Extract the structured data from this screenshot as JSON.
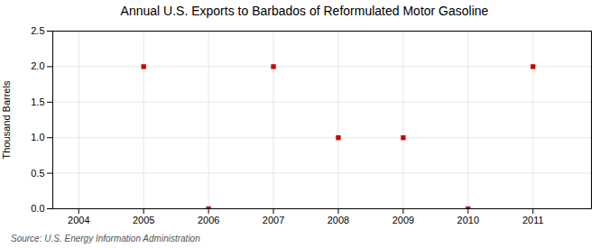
{
  "chart_data": {
    "type": "scatter",
    "title": "Annual U.S. Exports to Barbados of Reformulated Motor Gasoline",
    "ylabel": "Thousand Barrels",
    "source": "Source: U.S. Energy Information Administration",
    "x": [
      2005,
      2006,
      2007,
      2008,
      2009,
      2010,
      2011
    ],
    "values": [
      2,
      0,
      2,
      1,
      1,
      0,
      2
    ],
    "color": "#CC0000",
    "marker": "square",
    "xlim": [
      2003.6,
      2011.9
    ],
    "xticks": [
      2004,
      2005,
      2006,
      2007,
      2008,
      2009,
      2010,
      2011
    ],
    "ylim": [
      0,
      2.5
    ],
    "yticks": [
      {
        "value": 0.0,
        "label": "0.0"
      },
      0.5,
      {
        "value": 1.0,
        "label": "1.0"
      },
      1.5,
      {
        "value": 2.0,
        "label": "2.0"
      },
      2.5
    ],
    "grid": true
  }
}
